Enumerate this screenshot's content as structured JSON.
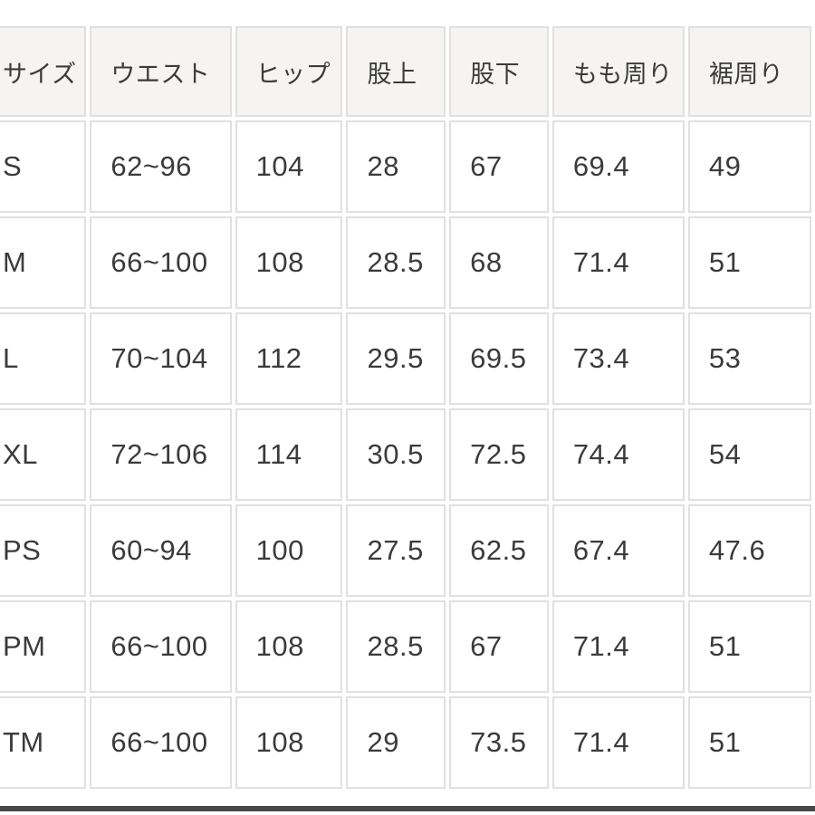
{
  "size_chart": {
    "headers": [
      "サイズ",
      "ウエスト",
      "ヒップ",
      "股上",
      "股下",
      "もも周り",
      "裾周り"
    ],
    "rows": [
      [
        "S",
        "62~96",
        "104",
        "28",
        "67",
        "69.4",
        "49"
      ],
      [
        "M",
        "66~100",
        "108",
        "28.5",
        "68",
        "71.4",
        "51"
      ],
      [
        "L",
        "70~104",
        "112",
        "29.5",
        "69.5",
        "73.4",
        "53"
      ],
      [
        "XL",
        "72~106",
        "114",
        "30.5",
        "72.5",
        "74.4",
        "54"
      ],
      [
        "PS",
        "60~94",
        "100",
        "27.5",
        "62.5",
        "67.4",
        "47.6"
      ],
      [
        "PM",
        "66~100",
        "108",
        "28.5",
        "67",
        "71.4",
        "51"
      ],
      [
        "TM",
        "66~100",
        "108",
        "29",
        "73.5",
        "71.4",
        "51"
      ]
    ]
  },
  "chart_data": {
    "type": "table",
    "title": "",
    "columns": [
      "サイズ",
      "ウエスト",
      "ヒップ",
      "股上",
      "股下",
      "もも周り",
      "裾周り"
    ],
    "rows": [
      [
        "S",
        "62~96",
        "104",
        "28",
        "67",
        "69.4",
        "49"
      ],
      [
        "M",
        "66~100",
        "108",
        "28.5",
        "68",
        "71.4",
        "51"
      ],
      [
        "L",
        "70~104",
        "112",
        "29.5",
        "69.5",
        "73.4",
        "53"
      ],
      [
        "XL",
        "72~106",
        "114",
        "30.5",
        "72.5",
        "74.4",
        "54"
      ],
      [
        "PS",
        "60~94",
        "100",
        "27.5",
        "62.5",
        "67.4",
        "47.6"
      ],
      [
        "PM",
        "66~100",
        "108",
        "28.5",
        "67",
        "71.4",
        "51"
      ],
      [
        "TM",
        "66~100",
        "108",
        "29",
        "73.5",
        "71.4",
        "51"
      ]
    ]
  },
  "colors": {
    "header_bg": "#f5f4f3",
    "cell_bg": "#ffffff",
    "border": "#e0e0e0",
    "text": "#3b3b3b",
    "divider": "#484848"
  }
}
